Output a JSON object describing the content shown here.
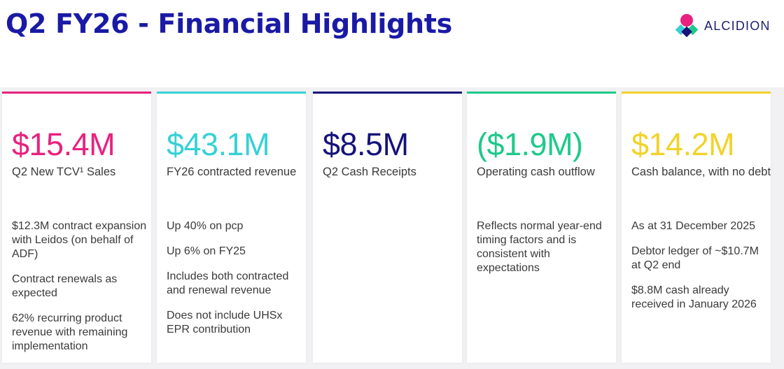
{
  "title": "Q2 FY26 - Financial Highlights",
  "logo": {
    "text": "ALCIDION",
    "colors": {
      "pink": "#e8227e",
      "cyan": "#36d1d6",
      "green": "#1ec98a",
      "navy": "#16127a"
    }
  },
  "cards": [
    {
      "value": "$15.4M",
      "label": "Q2 New TCV¹ Sales",
      "color": "#e8227e",
      "points": [
        "$12.3M contract expansion with Leidos (on behalf of ADF)",
        "Contract renewals as expected",
        "62% recurring product revenue with remaining implementation"
      ]
    },
    {
      "value": "$43.1M",
      "label": "FY26 contracted revenue",
      "color": "#36d1d6",
      "points": [
        "Up 40% on pcp",
        "Up 6% on FY25",
        "Includes both contracted and renewal revenue",
        "Does not include UHSx EPR contribution"
      ]
    },
    {
      "value": "$8.5M",
      "label": "Q2 Cash Receipts",
      "color": "#16127a",
      "points": []
    },
    {
      "value": "($1.9M)",
      "label": "Operating cash outflow",
      "color": "#1ec98a",
      "points": [
        "Reflects normal year-end timing factors and is consistent with expectations"
      ]
    },
    {
      "value": "$14.2M",
      "label": "Cash balance, with no debt",
      "color": "#f2d22a",
      "points": [
        "As at 31 December 2025",
        "Debtor ledger of ~$10.7M at Q2 end",
        "$8.8M cash already received in January 2026"
      ]
    }
  ]
}
